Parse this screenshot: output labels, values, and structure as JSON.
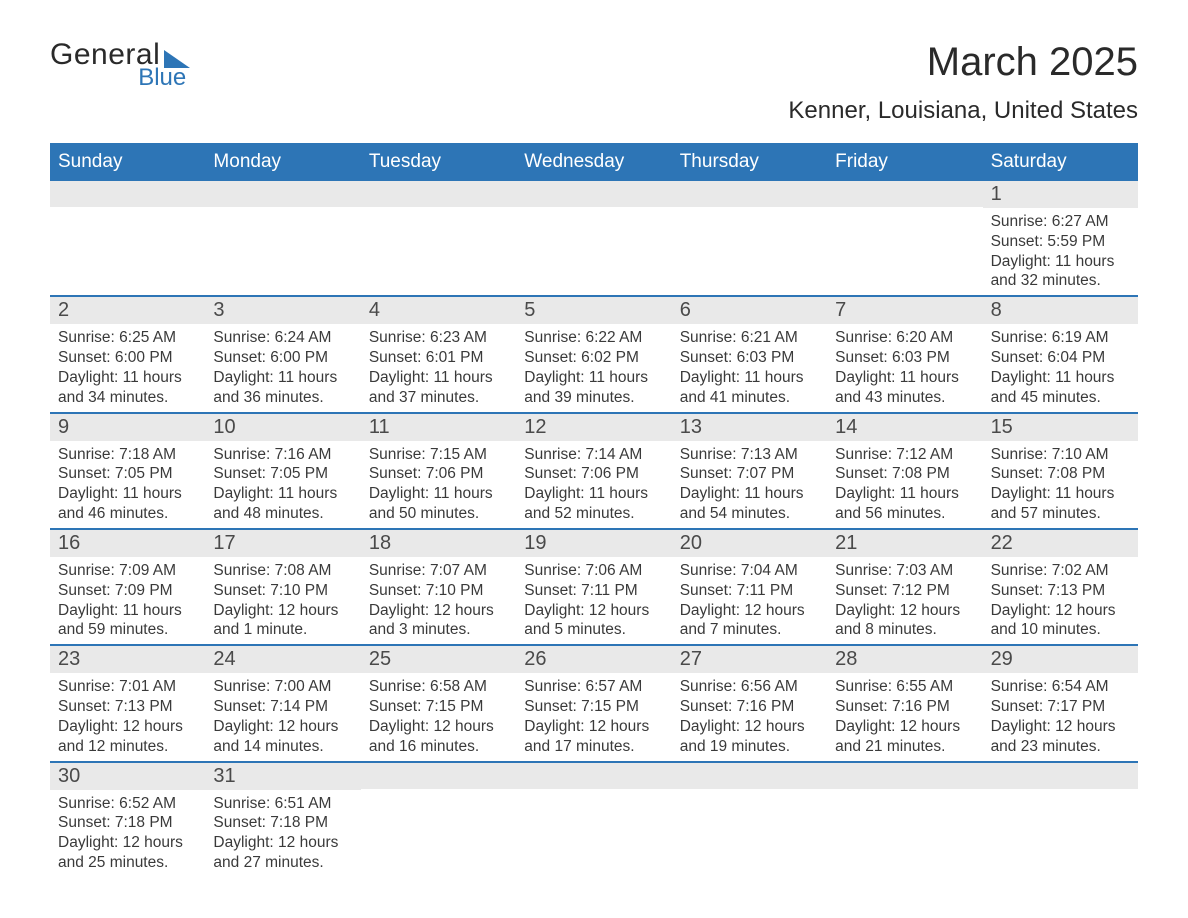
{
  "logo": {
    "text1": "General",
    "text2": "Blue"
  },
  "title": "March 2025",
  "location": "Kenner, Louisiana, United States",
  "colors": {
    "header_bg": "#2d75b6",
    "header_text": "#ffffff",
    "daynum_bg": "#e9e9e9",
    "body_text": "#3a3a3a",
    "border": "#2d75b6"
  },
  "dow": [
    "Sunday",
    "Monday",
    "Tuesday",
    "Wednesday",
    "Thursday",
    "Friday",
    "Saturday"
  ],
  "weeks": [
    [
      null,
      null,
      null,
      null,
      null,
      null,
      {
        "n": "1",
        "sunrise": "6:27 AM",
        "sunset": "5:59 PM",
        "daylight": "11 hours and 32 minutes."
      }
    ],
    [
      {
        "n": "2",
        "sunrise": "6:25 AM",
        "sunset": "6:00 PM",
        "daylight": "11 hours and 34 minutes."
      },
      {
        "n": "3",
        "sunrise": "6:24 AM",
        "sunset": "6:00 PM",
        "daylight": "11 hours and 36 minutes."
      },
      {
        "n": "4",
        "sunrise": "6:23 AM",
        "sunset": "6:01 PM",
        "daylight": "11 hours and 37 minutes."
      },
      {
        "n": "5",
        "sunrise": "6:22 AM",
        "sunset": "6:02 PM",
        "daylight": "11 hours and 39 minutes."
      },
      {
        "n": "6",
        "sunrise": "6:21 AM",
        "sunset": "6:03 PM",
        "daylight": "11 hours and 41 minutes."
      },
      {
        "n": "7",
        "sunrise": "6:20 AM",
        "sunset": "6:03 PM",
        "daylight": "11 hours and 43 minutes."
      },
      {
        "n": "8",
        "sunrise": "6:19 AM",
        "sunset": "6:04 PM",
        "daylight": "11 hours and 45 minutes."
      }
    ],
    [
      {
        "n": "9",
        "sunrise": "7:18 AM",
        "sunset": "7:05 PM",
        "daylight": "11 hours and 46 minutes."
      },
      {
        "n": "10",
        "sunrise": "7:16 AM",
        "sunset": "7:05 PM",
        "daylight": "11 hours and 48 minutes."
      },
      {
        "n": "11",
        "sunrise": "7:15 AM",
        "sunset": "7:06 PM",
        "daylight": "11 hours and 50 minutes."
      },
      {
        "n": "12",
        "sunrise": "7:14 AM",
        "sunset": "7:06 PM",
        "daylight": "11 hours and 52 minutes."
      },
      {
        "n": "13",
        "sunrise": "7:13 AM",
        "sunset": "7:07 PM",
        "daylight": "11 hours and 54 minutes."
      },
      {
        "n": "14",
        "sunrise": "7:12 AM",
        "sunset": "7:08 PM",
        "daylight": "11 hours and 56 minutes."
      },
      {
        "n": "15",
        "sunrise": "7:10 AM",
        "sunset": "7:08 PM",
        "daylight": "11 hours and 57 minutes."
      }
    ],
    [
      {
        "n": "16",
        "sunrise": "7:09 AM",
        "sunset": "7:09 PM",
        "daylight": "11 hours and 59 minutes."
      },
      {
        "n": "17",
        "sunrise": "7:08 AM",
        "sunset": "7:10 PM",
        "daylight": "12 hours and 1 minute."
      },
      {
        "n": "18",
        "sunrise": "7:07 AM",
        "sunset": "7:10 PM",
        "daylight": "12 hours and 3 minutes."
      },
      {
        "n": "19",
        "sunrise": "7:06 AM",
        "sunset": "7:11 PM",
        "daylight": "12 hours and 5 minutes."
      },
      {
        "n": "20",
        "sunrise": "7:04 AM",
        "sunset": "7:11 PM",
        "daylight": "12 hours and 7 minutes."
      },
      {
        "n": "21",
        "sunrise": "7:03 AM",
        "sunset": "7:12 PM",
        "daylight": "12 hours and 8 minutes."
      },
      {
        "n": "22",
        "sunrise": "7:02 AM",
        "sunset": "7:13 PM",
        "daylight": "12 hours and 10 minutes."
      }
    ],
    [
      {
        "n": "23",
        "sunrise": "7:01 AM",
        "sunset": "7:13 PM",
        "daylight": "12 hours and 12 minutes."
      },
      {
        "n": "24",
        "sunrise": "7:00 AM",
        "sunset": "7:14 PM",
        "daylight": "12 hours and 14 minutes."
      },
      {
        "n": "25",
        "sunrise": "6:58 AM",
        "sunset": "7:15 PM",
        "daylight": "12 hours and 16 minutes."
      },
      {
        "n": "26",
        "sunrise": "6:57 AM",
        "sunset": "7:15 PM",
        "daylight": "12 hours and 17 minutes."
      },
      {
        "n": "27",
        "sunrise": "6:56 AM",
        "sunset": "7:16 PM",
        "daylight": "12 hours and 19 minutes."
      },
      {
        "n": "28",
        "sunrise": "6:55 AM",
        "sunset": "7:16 PM",
        "daylight": "12 hours and 21 minutes."
      },
      {
        "n": "29",
        "sunrise": "6:54 AM",
        "sunset": "7:17 PM",
        "daylight": "12 hours and 23 minutes."
      }
    ],
    [
      {
        "n": "30",
        "sunrise": "6:52 AM",
        "sunset": "7:18 PM",
        "daylight": "12 hours and 25 minutes."
      },
      {
        "n": "31",
        "sunrise": "6:51 AM",
        "sunset": "7:18 PM",
        "daylight": "12 hours and 27 minutes."
      },
      null,
      null,
      null,
      null,
      null
    ]
  ],
  "labels": {
    "sunrise": "Sunrise: ",
    "sunset": "Sunset: ",
    "daylight": "Daylight: "
  }
}
